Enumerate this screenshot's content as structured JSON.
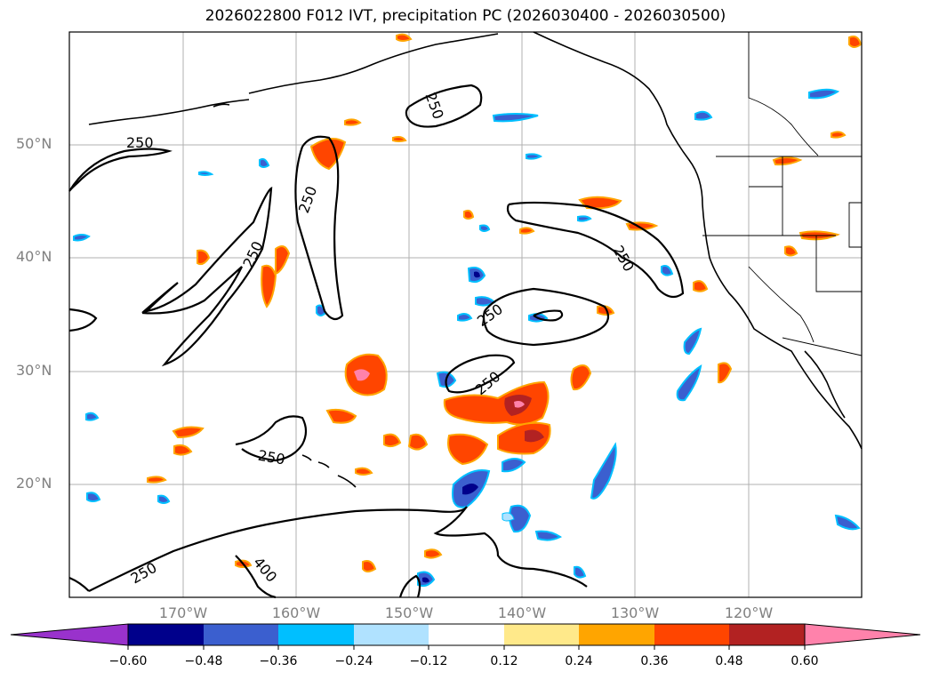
{
  "title": "2026022800 F012 IVT, precipitation PC (2026030400 - 2026030500)",
  "lat_labels": [
    "50°N",
    "40°N",
    "30°N",
    "20°N"
  ],
  "lon_labels": [
    "170°W",
    "160°W",
    "150°W",
    "140°W",
    "130°W",
    "120°W"
  ],
  "contour_labels": [
    "250",
    "250",
    "250",
    "250",
    "250",
    "250",
    "250",
    "250",
    "250",
    "400"
  ],
  "colorbar": {
    "ticks": [
      "−0.60",
      "−0.48",
      "−0.36",
      "−0.24",
      "−0.12",
      "0.12",
      "0.24",
      "0.36",
      "0.48",
      "0.60"
    ],
    "colors": [
      "#9932cc",
      "#00008b",
      "#3b5fcf",
      "#00bfff",
      "#b0e2ff",
      "#ffffff",
      "#ffe98a",
      "#ffa500",
      "#ff4500",
      "#b22222",
      "#ff82ab"
    ]
  },
  "colors": {
    "grid": "#b0b0b0",
    "coast": "#000000",
    "contour": "#000000",
    "label": "#808080"
  }
}
